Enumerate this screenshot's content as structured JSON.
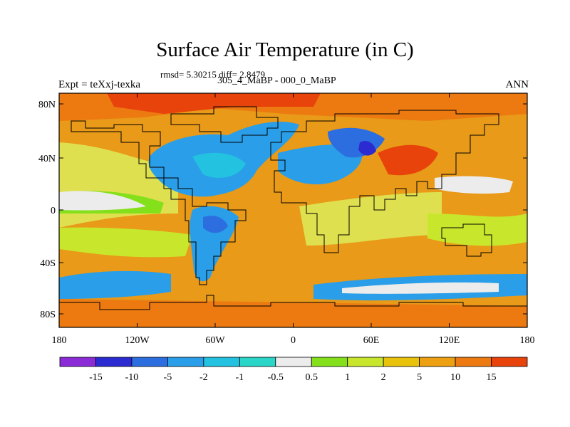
{
  "figure": {
    "title": "Surface Air Temperature (in C)",
    "stats_line": "rmsd= 5.30215 diff= 2.8479",
    "comparison": "305_4_MaBP - 000_0_MaBP",
    "experiment": "Expt = teXxj-texka",
    "season": "ANN"
  },
  "map": {
    "lat_ticks": [
      "80N",
      "40N",
      "0",
      "40S",
      "80S"
    ],
    "lon_ticks": [
      "180",
      "120W",
      "60W",
      "0",
      "60E",
      "120E",
      "180"
    ],
    "ocean_color": "#e89a18",
    "land_color": "#dfe04f"
  },
  "colorbar": {
    "colors": [
      "#8b2bd8",
      "#2c2bd1",
      "#2c6ee0",
      "#2a9ee8",
      "#22c2e0",
      "#2ad6c8",
      "#ececec",
      "#85e01c",
      "#c8e72c",
      "#e9c20b",
      "#eca012",
      "#ec7a11",
      "#e8430b"
    ],
    "labels": [
      "-15",
      "-10",
      "-5",
      "-2",
      "-1",
      "-0.5",
      "0.5",
      "1",
      "2",
      "5",
      "10",
      "15"
    ]
  }
}
